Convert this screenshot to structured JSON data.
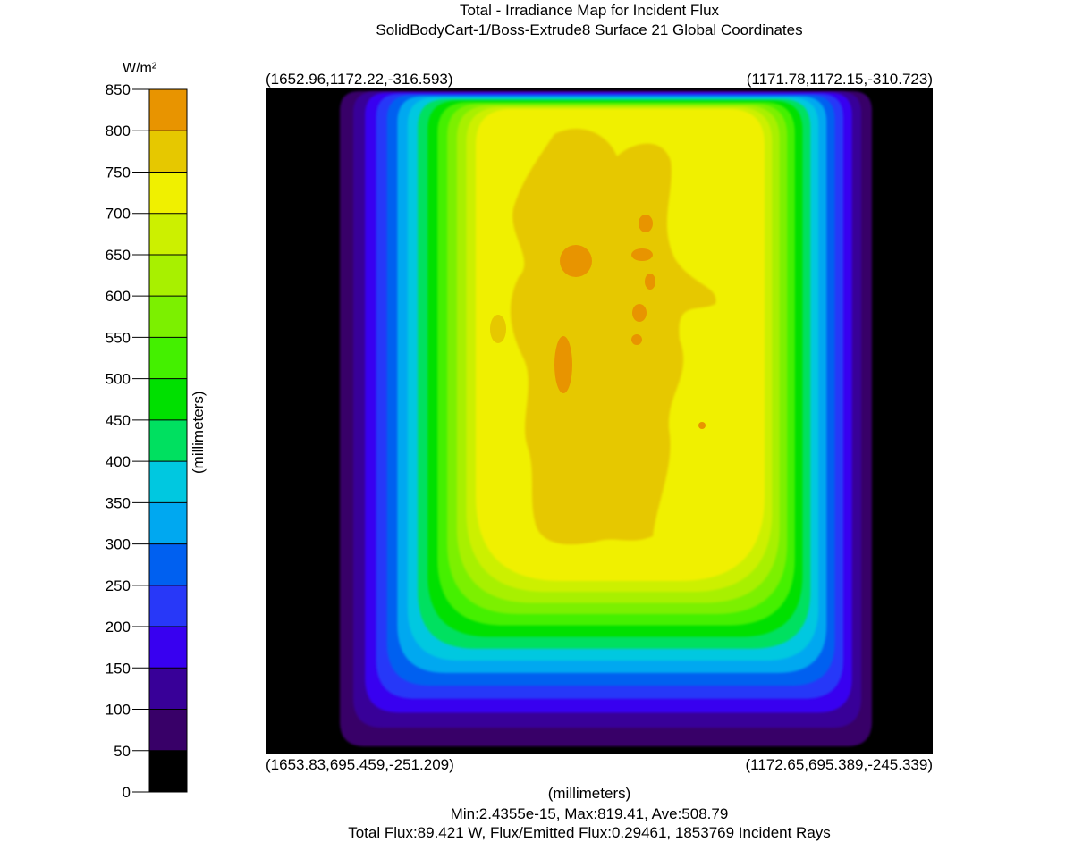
{
  "title_line1": "Total - Irradiance Map for Incident Flux",
  "title_line2": "SolidBodyCart-1/Boss-Extrude8 Surface 21    Global Coordinates",
  "corners": {
    "top_left": "(1652.96,1172.22,-316.593)",
    "top_right": "(1171.78,1172.15,-310.723)",
    "bottom_left": "(1653.83,695.459,-251.209)",
    "bottom_right": "(1172.65,695.389,-245.339)"
  },
  "axis_label_x": "(millimeters)",
  "axis_label_y": "(millimeters)",
  "stats": {
    "line1": "Min:2.4355e-15, Max:819.41, Ave:508.79",
    "line2": "Total Flux:89.421 W, Flux/Emitted Flux:0.29461, 1853769 Incident Rays"
  },
  "chart_data": {
    "type": "heatmap",
    "title": "Total - Irradiance Map for Incident Flux",
    "subtitle": "SolidBodyCart-1/Boss-Extrude8 Surface 21    Global Coordinates",
    "colorbar": {
      "unit": "W/m²",
      "range": [
        0,
        850
      ],
      "ticks": [
        850,
        800,
        750,
        700,
        650,
        600,
        550,
        500,
        450,
        400,
        350,
        300,
        250,
        200,
        150,
        100,
        50,
        0
      ],
      "bands": [
        {
          "min": 800,
          "max": 850,
          "color": "#e89400"
        },
        {
          "min": 750,
          "max": 800,
          "color": "#e6c800"
        },
        {
          "min": 700,
          "max": 750,
          "color": "#f0f000"
        },
        {
          "min": 650,
          "max": 700,
          "color": "#ccf000"
        },
        {
          "min": 600,
          "max": 650,
          "color": "#a8f000"
        },
        {
          "min": 550,
          "max": 600,
          "color": "#7cf000"
        },
        {
          "min": 500,
          "max": 550,
          "color": "#44f000"
        },
        {
          "min": 450,
          "max": 500,
          "color": "#00e000"
        },
        {
          "min": 400,
          "max": 450,
          "color": "#00e060"
        },
        {
          "min": 350,
          "max": 400,
          "color": "#00c8e0"
        },
        {
          "min": 300,
          "max": 350,
          "color": "#00a8f0"
        },
        {
          "min": 250,
          "max": 300,
          "color": "#0060f0"
        },
        {
          "min": 200,
          "max": 250,
          "color": "#2838f8"
        },
        {
          "min": 150,
          "max": 200,
          "color": "#3800f0"
        },
        {
          "min": 100,
          "max": 150,
          "color": "#380098"
        },
        {
          "min": 50,
          "max": 100,
          "color": "#380068"
        },
        {
          "min": 0,
          "max": 50,
          "color": "#000000"
        }
      ]
    },
    "stats": {
      "min": 2.4355e-15,
      "max": 819.41,
      "ave": 508.79,
      "total_flux_W": 89.421,
      "flux_emitted_ratio": 0.29461,
      "incident_rays": 1853769
    },
    "grid": false,
    "legend_placement": "left"
  }
}
